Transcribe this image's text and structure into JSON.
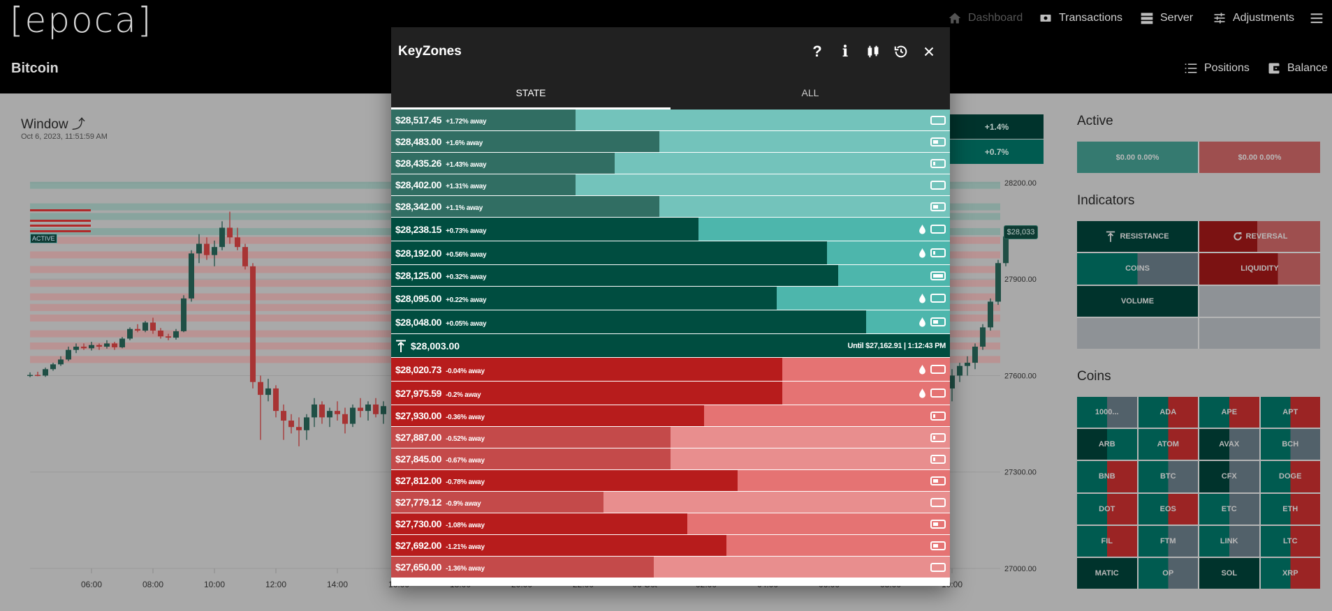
{
  "header": {
    "logo": "[epoca]",
    "nav": [
      {
        "label": "Dashboard",
        "icon": "home-icon",
        "disabled": true
      },
      {
        "label": "Transactions",
        "icon": "money-exchange-icon"
      },
      {
        "label": "Server",
        "icon": "server-icon"
      },
      {
        "label": "Adjustments",
        "icon": "tune-icon"
      }
    ],
    "menu_icon": "hamburger-menu-icon",
    "page_title": "Bitcoin",
    "actions": [
      {
        "label": "Positions",
        "icon": "numbered-list-icon"
      },
      {
        "label": "Balance",
        "icon": "wallet-icon"
      }
    ]
  },
  "window": {
    "title": "Window",
    "icon": "trending-up-icon",
    "timestamp": "Oct 6, 2023, 11:51:59 AM"
  },
  "chart_data": {
    "type": "candlestick",
    "y_ticks": [
      "28200.00",
      "27900.00",
      "27600.00",
      "27300.00",
      "27000.00"
    ],
    "y_tick_values": [
      28200,
      27900,
      27600,
      27300,
      27000
    ],
    "x_ticks": [
      "06:00",
      "08:00",
      "10:00",
      "12:00",
      "14:00",
      "16:00",
      "18:00",
      "20:00",
      "22:00",
      "06 Oct",
      "02:00",
      "04:00",
      "06:00",
      "08:00",
      "10:00"
    ],
    "current_price_label": "$28,033",
    "active_label": "ACTIVE",
    "overlay_badges": [
      "+1.4%",
      "+0.7%"
    ],
    "candles": [
      [
        "2023-10-05 04:00",
        27600,
        27610,
        27595,
        27602
      ],
      [
        "2023-10-05 04:15",
        27602,
        27612,
        27598,
        27600
      ],
      [
        "2023-10-05 04:30",
        27600,
        27625,
        27596,
        27620
      ],
      [
        "2023-10-05 04:45",
        27620,
        27640,
        27615,
        27635
      ],
      [
        "2023-10-05 05:00",
        27635,
        27660,
        27630,
        27650
      ],
      [
        "2023-10-05 05:15",
        27650,
        27690,
        27645,
        27680
      ],
      [
        "2023-10-05 05:30",
        27680,
        27700,
        27670,
        27690
      ],
      [
        "2023-10-05 05:45",
        27690,
        27700,
        27680,
        27685
      ],
      [
        "2023-10-05 06:00",
        27685,
        27705,
        27678,
        27695
      ],
      [
        "2023-10-05 06:15",
        27695,
        27700,
        27680,
        27690
      ],
      [
        "2023-10-05 06:30",
        27690,
        27710,
        27684,
        27700
      ],
      [
        "2023-10-05 06:45",
        27700,
        27705,
        27680,
        27688
      ],
      [
        "2023-10-05 07:00",
        27688,
        27720,
        27685,
        27715
      ],
      [
        "2023-10-05 07:15",
        27715,
        27750,
        27710,
        27745
      ],
      [
        "2023-10-05 07:30",
        27745,
        27760,
        27735,
        27740
      ],
      [
        "2023-10-05 07:45",
        27740,
        27770,
        27735,
        27765
      ],
      [
        "2023-10-05 08:00",
        27765,
        27780,
        27730,
        27740
      ],
      [
        "2023-10-05 08:15",
        27740,
        27748,
        27715,
        27722
      ],
      [
        "2023-10-05 08:30",
        27722,
        27730,
        27710,
        27718
      ],
      [
        "2023-10-05 08:45",
        27718,
        27745,
        27712,
        27738
      ],
      [
        "2023-10-05 09:00",
        27738,
        27850,
        27735,
        27840
      ],
      [
        "2023-10-05 09:15",
        27840,
        27990,
        27830,
        27980
      ],
      [
        "2023-10-05 09:30",
        27980,
        28040,
        27950,
        28010
      ],
      [
        "2023-10-05 09:45",
        28010,
        28030,
        27960,
        27975
      ],
      [
        "2023-10-05 10:00",
        27975,
        28020,
        27940,
        28000
      ],
      [
        "2023-10-05 10:15",
        28000,
        28080,
        27990,
        28060
      ],
      [
        "2023-10-05 10:30",
        28060,
        28110,
        28010,
        28030
      ],
      [
        "2023-10-05 10:45",
        28030,
        28060,
        27990,
        28000
      ],
      [
        "2023-10-05 11:00",
        28000,
        28010,
        27930,
        27940
      ],
      [
        "2023-10-05 11:15",
        27940,
        27950,
        27560,
        27580
      ],
      [
        "2023-10-05 11:30",
        27580,
        27600,
        27400,
        27540
      ],
      [
        "2023-10-05 11:45",
        27540,
        27590,
        27520,
        27560
      ],
      [
        "2023-10-05 12:00",
        27560,
        27570,
        27470,
        27490
      ],
      [
        "2023-10-05 12:15",
        27490,
        27510,
        27400,
        27460
      ],
      [
        "2023-10-05 12:30",
        27460,
        27480,
        27420,
        27440
      ],
      [
        "2023-10-05 12:45",
        27440,
        27470,
        27380,
        27430
      ],
      [
        "2023-10-05 13:00",
        27430,
        27480,
        27400,
        27470
      ],
      [
        "2023-10-05 13:15",
        27470,
        27530,
        27440,
        27510
      ],
      [
        "2023-10-05 13:30",
        27510,
        27520,
        27450,
        27470
      ],
      [
        "2023-10-05 13:45",
        27470,
        27500,
        27440,
        27490
      ],
      [
        "2023-10-05 14:00",
        27490,
        27520,
        27460,
        27480
      ],
      [
        "2023-10-05 14:15",
        27480,
        27500,
        27420,
        27450
      ],
      [
        "2023-10-05 14:30",
        27450,
        27510,
        27440,
        27500
      ],
      [
        "2023-10-05 14:45",
        27500,
        27530,
        27470,
        27490
      ],
      [
        "2023-10-05 15:00",
        27490,
        27520,
        27460,
        27510
      ],
      [
        "2023-10-05 15:15",
        27510,
        27530,
        27470,
        27480
      ],
      [
        "2023-10-05 15:30",
        27480,
        27520,
        27450,
        27505
      ],
      [
        "2023-10-06 10:00",
        27560,
        27620,
        27520,
        27600
      ],
      [
        "2023-10-06 10:15",
        27600,
        27640,
        27580,
        27630
      ],
      [
        "2023-10-06 10:30",
        27630,
        27660,
        27600,
        27640
      ],
      [
        "2023-10-06 10:45",
        27640,
        27700,
        27620,
        27690
      ],
      [
        "2023-10-06 11:00",
        27690,
        27760,
        27680,
        27750
      ],
      [
        "2023-10-06 11:15",
        27750,
        27840,
        27740,
        27830
      ],
      [
        "2023-10-06 11:30",
        27830,
        27960,
        27820,
        27950
      ],
      [
        "2023-10-06 11:45",
        27950,
        28040,
        27940,
        28033
      ]
    ]
  },
  "keyzones": {
    "title": "KeyZones",
    "header_icons": [
      "help-icon",
      "info-icon",
      "candlestick-icon",
      "history-icon",
      "close-icon"
    ],
    "tabs": [
      {
        "label": "STATE",
        "active": true
      },
      {
        "label": "ALL",
        "active": false
      }
    ],
    "resistance": [
      {
        "price": "$28,517.45",
        "away": "+1.72% away",
        "value": 28517.45,
        "strength": 0.33,
        "tier": "weak",
        "liquidity": false,
        "volume": "empty"
      },
      {
        "price": "$28,483.00",
        "away": "+1.6% away",
        "value": 28483,
        "strength": 0.48,
        "tier": "weak",
        "liquidity": false,
        "volume": "mid"
      },
      {
        "price": "$28,435.26",
        "away": "+1.43% away",
        "value": 28435.26,
        "strength": 0.4,
        "tier": "weak",
        "liquidity": false,
        "volume": "low"
      },
      {
        "price": "$28,402.00",
        "away": "+1.31% away",
        "value": 28402,
        "strength": 0.33,
        "tier": "weak",
        "liquidity": false,
        "volume": "empty"
      },
      {
        "price": "$28,342.00",
        "away": "+1.1% away",
        "value": 28342,
        "strength": 0.48,
        "tier": "weak",
        "liquidity": false,
        "volume": "mid"
      },
      {
        "price": "$28,238.15",
        "away": "+0.73% away",
        "value": 28238.15,
        "strength": 0.55,
        "tier": "strong",
        "liquidity": true,
        "volume": "empty"
      },
      {
        "price": "$28,192.00",
        "away": "+0.56% away",
        "value": 28192,
        "strength": 0.78,
        "tier": "strong",
        "liquidity": true,
        "volume": "low"
      },
      {
        "price": "$28,125.00",
        "away": "+0.32% away",
        "value": 28125,
        "strength": 0.8,
        "tier": "strong",
        "liquidity": false,
        "volume": "full"
      },
      {
        "price": "$28,095.00",
        "away": "+0.22% away",
        "value": 28095,
        "strength": 0.69,
        "tier": "strong",
        "liquidity": true,
        "volume": "empty"
      },
      {
        "price": "$28,048.00",
        "away": "+0.05% away",
        "value": 28048,
        "strength": 0.85,
        "tier": "strong",
        "liquidity": true,
        "volume": "mid"
      }
    ],
    "current": {
      "icon": "resistance-arrow-icon",
      "price": "$28,003.00",
      "until": "Until $27,162.91 | 1:12:43 PM"
    },
    "support": [
      {
        "price": "$28,020.73",
        "away": "-0.04% away",
        "value": 28020.73,
        "strength": 0.7,
        "tier": "strong",
        "liquidity": true,
        "volume": "empty"
      },
      {
        "price": "$27,975.59",
        "away": "-0.2% away",
        "value": 27975.59,
        "strength": 0.7,
        "tier": "strong",
        "liquidity": true,
        "volume": "empty"
      },
      {
        "price": "$27,930.00",
        "away": "-0.36% away",
        "value": 27930,
        "strength": 0.56,
        "tier": "strong",
        "liquidity": false,
        "volume": "low"
      },
      {
        "price": "$27,887.00",
        "away": "-0.52% away",
        "value": 27887,
        "strength": 0.5,
        "tier": "weak",
        "liquidity": false,
        "volume": "low"
      },
      {
        "price": "$27,845.00",
        "away": "-0.67% away",
        "value": 27845,
        "strength": 0.5,
        "tier": "weak",
        "liquidity": false,
        "volume": "low"
      },
      {
        "price": "$27,812.00",
        "away": "-0.78% away",
        "value": 27812,
        "strength": 0.62,
        "tier": "strong",
        "liquidity": false,
        "volume": "mid"
      },
      {
        "price": "$27,779.12",
        "away": "-0.9% away",
        "value": 27779.12,
        "strength": 0.38,
        "tier": "weak",
        "liquidity": false,
        "volume": "empty"
      },
      {
        "price": "$27,730.00",
        "away": "-1.08% away",
        "value": 27730,
        "strength": 0.53,
        "tier": "strong",
        "liquidity": false,
        "volume": "mid"
      },
      {
        "price": "$27,692.00",
        "away": "-1.21% away",
        "value": 27692,
        "strength": 0.6,
        "tier": "strong",
        "liquidity": false,
        "volume": "mid"
      },
      {
        "price": "$27,650.00",
        "away": "-1.36% away",
        "value": 27650,
        "strength": 0.47,
        "tier": "weak",
        "liquidity": false,
        "volume": "empty"
      }
    ]
  },
  "active": {
    "title": "Active",
    "long": "$0.00 0.00%",
    "short": "$0.00 0.00%"
  },
  "indicators": {
    "title": "Indicators",
    "items": [
      {
        "label": "RESISTANCE",
        "icon": "resistance-arrow-icon",
        "left": "dark",
        "right": "dark",
        "split": 1
      },
      {
        "label": "REVERSAL",
        "icon": "refresh-icon",
        "left": "red",
        "right": "lightred",
        "split": 0.48
      },
      {
        "label": "COINS",
        "left": "mid",
        "right": "gray",
        "split": 0.5
      },
      {
        "label": "LIQUIDITY",
        "left": "red",
        "right": "lightred",
        "split": 0.65
      },
      {
        "label": "VOLUME",
        "left": "dark",
        "right": "dark",
        "split": 1
      },
      {
        "label": "",
        "left": "empty",
        "right": "empty",
        "split": 1
      },
      {
        "label": "",
        "left": "empty",
        "right": "empty",
        "split": 1
      },
      {
        "label": "",
        "left": "empty",
        "right": "empty",
        "split": 1
      }
    ]
  },
  "coins": {
    "title": "Coins",
    "items": [
      {
        "label": "1000...",
        "left": "mid",
        "right": "gray"
      },
      {
        "label": "ADA",
        "left": "mid",
        "right": "red"
      },
      {
        "label": "APE",
        "left": "mid",
        "right": "red"
      },
      {
        "label": "APT",
        "left": "mid",
        "right": "red"
      },
      {
        "label": "ARB",
        "left": "dark",
        "right": "mid"
      },
      {
        "label": "ATOM",
        "left": "mid",
        "right": "red"
      },
      {
        "label": "AVAX",
        "left": "dark",
        "right": "gray"
      },
      {
        "label": "BCH",
        "left": "mid",
        "right": "gray"
      },
      {
        "label": "BNB",
        "left": "mid",
        "right": "red"
      },
      {
        "label": "BTC",
        "left": "mid",
        "right": "gray"
      },
      {
        "label": "CFX",
        "left": "dark",
        "right": "gray"
      },
      {
        "label": "DOGE",
        "left": "mid",
        "right": "red"
      },
      {
        "label": "DOT",
        "left": "mid",
        "right": "red"
      },
      {
        "label": "EOS",
        "left": "mid",
        "right": "red"
      },
      {
        "label": "ETC",
        "left": "mid",
        "right": "gray"
      },
      {
        "label": "ETH",
        "left": "mid",
        "right": "red"
      },
      {
        "label": "FIL",
        "left": "mid",
        "right": "red"
      },
      {
        "label": "FTM",
        "left": "mid",
        "right": "gray"
      },
      {
        "label": "LINK",
        "left": "mid",
        "right": "gray"
      },
      {
        "label": "LTC",
        "left": "mid",
        "right": "red"
      },
      {
        "label": "MATIC",
        "left": "dark",
        "right": "dark"
      },
      {
        "label": "OP",
        "left": "mid",
        "right": "gray"
      },
      {
        "label": "SOL",
        "left": "dark",
        "right": "dark"
      },
      {
        "label": "XRP",
        "left": "mid",
        "right": "red"
      }
    ]
  },
  "colors": {
    "green_strong": "#004d40",
    "green_strong_light": "#4db6ac",
    "green_weak": "#316e63",
    "green_weak_light": "#73c3bb",
    "red_strong": "#b71c1c",
    "red_strong_light": "#e57373",
    "red_weak": "#c44a4a",
    "red_weak_light": "#e88e8e",
    "state_dark": "#00332c",
    "state_mid": "#005b50",
    "state_gray": "#52616a",
    "state_red": "#9b2424",
    "state_lightred": "#9e4f4f",
    "state_redfill": "#7b1212",
    "state_empty": "#8e9296",
    "candle_up": "#1f4f45",
    "candle_down": "#a83434"
  }
}
